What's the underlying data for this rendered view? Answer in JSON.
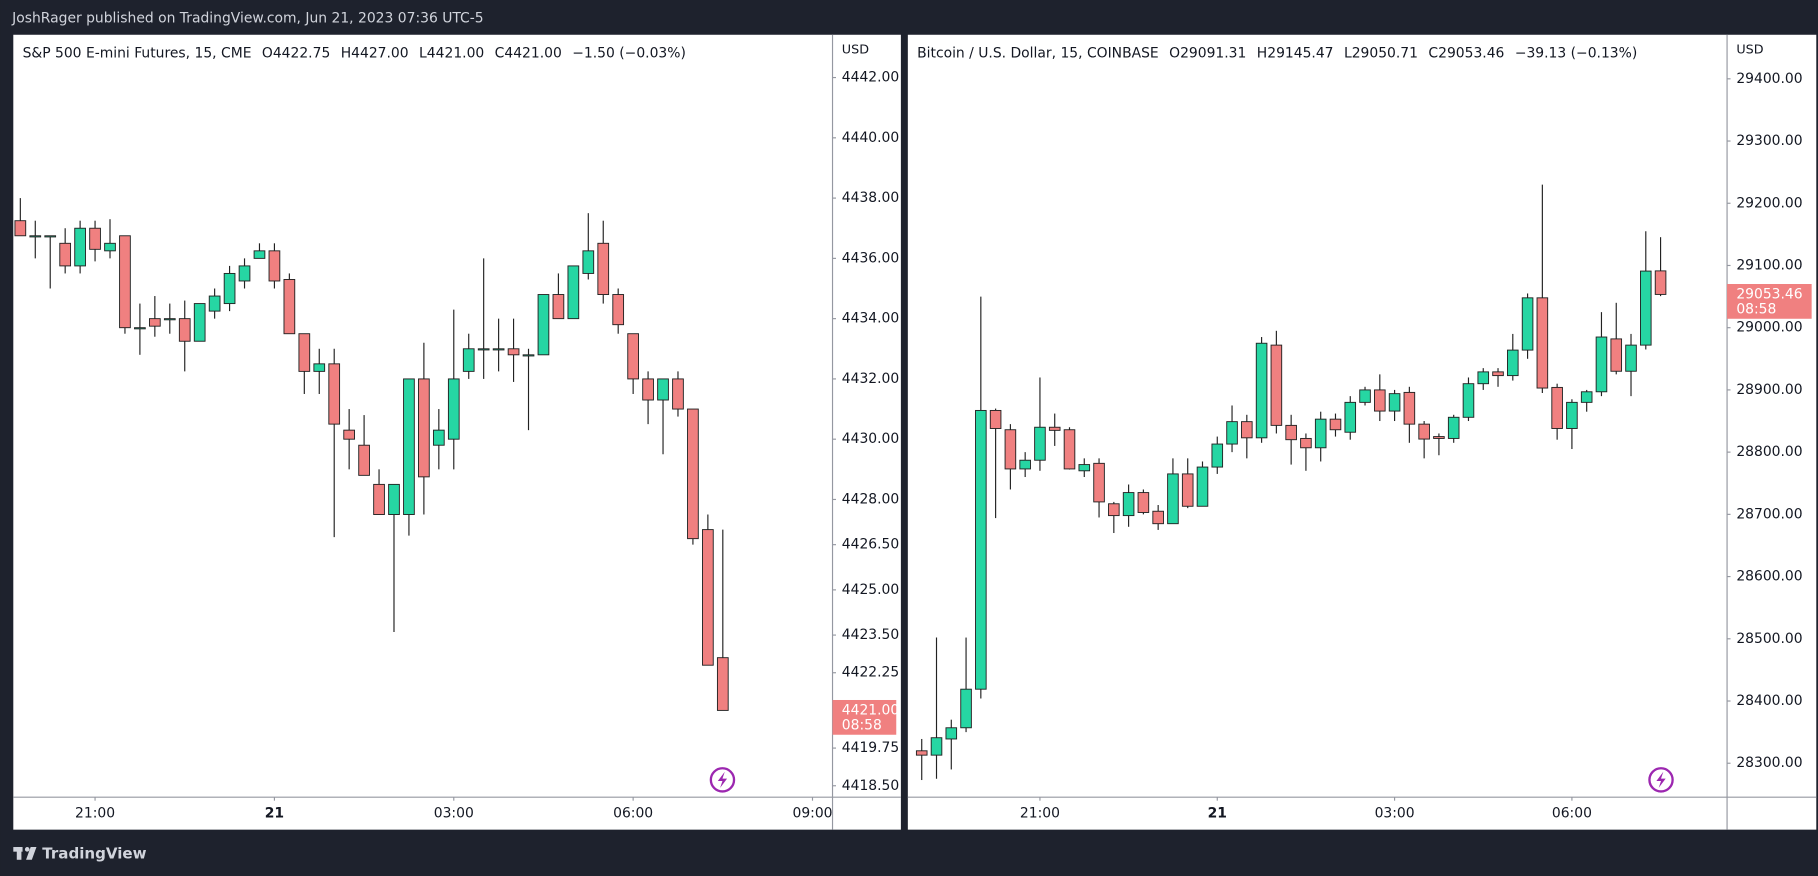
{
  "page": {
    "publisher": "JoshRager published on TradingView.com, Jun 21, 2023 07:36 UTC-5",
    "brand": "TradingView"
  },
  "chart_data": [
    {
      "type": "candlestick",
      "title": "S&P 500 E-mini Futures, 15, CME",
      "ohlc_legend": [
        {
          "label": "O",
          "value": "4422.75"
        },
        {
          "label": "H",
          "value": "4427.00"
        },
        {
          "label": "L",
          "value": "4421.00"
        },
        {
          "label": "C",
          "value": "4421.00"
        }
      ],
      "change": "−1.50 (−0.03%)",
      "currency": "USD",
      "last_price_label": "4421.00",
      "countdown": "08:58",
      "up_color": "#26d6a3",
      "down_color": "#f08080",
      "open": [
        4437.25,
        4436.75,
        4436.75,
        4436.5,
        4435.75,
        4437,
        4436.25,
        4436.75,
        4433.7,
        4434,
        4434,
        4434,
        4433.25,
        4434.25,
        4434.5,
        4435.25,
        4436,
        4436.25,
        4435.3,
        4433.5,
        4432.25,
        4432.5,
        4430.3,
        4429.8,
        4428.5,
        4427.5,
        4427.5,
        4432,
        4429.8,
        4430,
        4432.25,
        4433,
        4433,
        4433,
        4432.8,
        4432.8,
        4434.8,
        4434,
        4435.5,
        4436.5,
        4434.8,
        4433.5,
        4432,
        4431.3,
        4432,
        4431,
        4427,
        4422.75
      ],
      "high": [
        4438,
        4437.25,
        4436.75,
        4437,
        4437.25,
        4437.25,
        4437.3,
        4436.75,
        4434.5,
        4434.75,
        4434.5,
        4434.6,
        4434.5,
        4435,
        4435.75,
        4436,
        4436.5,
        4436.5,
        4435.5,
        4433.5,
        4433,
        4433,
        4431,
        4430.8,
        4429,
        4428.5,
        4432,
        4433.2,
        4431,
        4434.3,
        4433.5,
        4436,
        4434,
        4434,
        4433,
        4434.8,
        4435.5,
        4435.75,
        4437.5,
        4437.25,
        4435,
        4433.5,
        4432.25,
        4432,
        4432.25,
        4431,
        4427.5,
        4427
      ],
      "low": [
        4436.75,
        4436,
        4435,
        4435.5,
        4435.5,
        4435.9,
        4436,
        4433.5,
        4432.8,
        4433.4,
        4433.5,
        4432.25,
        4433.25,
        4434,
        4434.25,
        4435,
        4436,
        4435,
        4433.5,
        4431.5,
        4431.5,
        4426.75,
        4429,
        4428.8,
        4427.5,
        4423.6,
        4426.8,
        4427.5,
        4429,
        4429,
        4432,
        4432,
        4432.25,
        4431.9,
        4430.3,
        4432.8,
        4434,
        4434,
        4435.3,
        4434.5,
        4433.5,
        4431.5,
        4430.5,
        4429.5,
        4430.75,
        4426.5,
        4422.5,
        4421
      ],
      "close": [
        4436.75,
        4436.75,
        4436.75,
        4435.75,
        4437,
        4436.3,
        4436.5,
        4433.7,
        4433.7,
        4433.75,
        4434,
        4433.25,
        4434.5,
        4434.75,
        4435.5,
        4435.75,
        4436.25,
        4435.25,
        4433.5,
        4432.25,
        4432.5,
        4430.5,
        4430,
        4428.8,
        4427.5,
        4428.5,
        4432,
        4428.75,
        4430.3,
        4432,
        4433,
        4433,
        4433,
        4432.8,
        4432.8,
        4434.8,
        4434,
        4435.75,
        4436.25,
        4434.8,
        4433.8,
        4432,
        4431.3,
        4432,
        4431,
        4426.7,
        4422.5,
        4421
      ],
      "xlim": [
        -0.47,
        54.34
      ],
      "xticks": [
        {
          "value": 5,
          "label": "21:00"
        },
        {
          "value": 17,
          "label": "21",
          "bold": true
        },
        {
          "value": 29,
          "label": "03:00"
        },
        {
          "value": 41,
          "label": "06:00"
        },
        {
          "value": 53,
          "label": "09:00"
        }
      ],
      "ylim": [
        4418.12,
        4443.42
      ],
      "yticks": [
        {
          "value": 4442,
          "label": "4442.00"
        },
        {
          "value": 4440,
          "label": "4440.00"
        },
        {
          "value": 4438,
          "label": "4438.00"
        },
        {
          "value": 4436,
          "label": "4436.00"
        },
        {
          "value": 4434,
          "label": "4434.00"
        },
        {
          "value": 4432,
          "label": "4432.00"
        },
        {
          "value": 4430,
          "label": "4430.00"
        },
        {
          "value": 4428,
          "label": "4428.00"
        },
        {
          "value": 4426.5,
          "label": "4426.50"
        },
        {
          "value": 4425,
          "label": "4425.00"
        },
        {
          "value": 4423.5,
          "label": "4423.50"
        },
        {
          "value": 4422.25,
          "label": "4422.25"
        },
        {
          "value": 4419.75,
          "label": "4419.75"
        },
        {
          "value": 4418.5,
          "label": "4418.50"
        }
      ]
    },
    {
      "type": "candlestick",
      "title": "Bitcoin / U.S. Dollar, 15, COINBASE",
      "ohlc_legend": [
        {
          "label": "O",
          "value": "29091.31"
        },
        {
          "label": "H",
          "value": "29145.47"
        },
        {
          "label": "L",
          "value": "29050.71"
        },
        {
          "label": "C",
          "value": "29053.46"
        }
      ],
      "change": "−39.13 (−0.13%)",
      "currency": "USD",
      "last_price_label": "29053.46",
      "countdown": "08:58",
      "up_color": "#26d6a3",
      "down_color": "#f08080",
      "open": [
        28320,
        28313,
        28339,
        28357,
        28419,
        28867,
        28836,
        28773,
        28787,
        28840,
        28836,
        28770,
        28782,
        28717,
        28698,
        28735,
        28705,
        28685,
        28765,
        28713,
        28776,
        28813,
        28849,
        28823,
        28972,
        28843,
        28822,
        28807,
        28853,
        28832,
        28880,
        28900,
        28866,
        28896,
        28845,
        28825,
        28822,
        28856,
        28910,
        28929,
        28923,
        28964,
        29048,
        28904,
        28838,
        28880,
        28897,
        28982,
        28930,
        28972,
        29091.31
      ],
      "high": [
        28339,
        28502,
        28370,
        28502,
        29050,
        28870,
        28845,
        28800,
        28920,
        28862,
        28840,
        28790,
        28790,
        28720,
        28748,
        28740,
        28715,
        28790,
        28790,
        28785,
        28825,
        28875,
        28860,
        28985,
        28995,
        28860,
        28830,
        28865,
        28862,
        28890,
        28905,
        28925,
        28900,
        28905,
        28850,
        28830,
        28860,
        28920,
        28935,
        28935,
        28990,
        29055,
        29230,
        28910,
        28885,
        28900,
        29025,
        29040,
        28990,
        29155,
        29145.47
      ],
      "low": [
        28273,
        28275,
        28290,
        28350,
        28404,
        28694,
        28740,
        28760,
        28770,
        28810,
        28772,
        28760,
        28695,
        28670,
        28680,
        28700,
        28675,
        28685,
        28710,
        28713,
        28765,
        28800,
        28790,
        28815,
        28830,
        28780,
        28770,
        28785,
        28825,
        28820,
        28875,
        28850,
        28850,
        28815,
        28790,
        28795,
        28815,
        28850,
        28900,
        28905,
        28915,
        28950,
        28895,
        28820,
        28805,
        28865,
        28890,
        28925,
        28890,
        28965,
        29050.71
      ],
      "close": [
        28313,
        28341,
        28357,
        28419,
        28867,
        28838,
        28773,
        28787,
        28840,
        28835,
        28773,
        28780,
        28720,
        28698,
        28735,
        28703,
        28685,
        28765,
        28713,
        28776,
        28813,
        28849,
        28823,
        28975,
        28843,
        28820,
        28807,
        28853,
        28836,
        28880,
        28900,
        28866,
        28894,
        28845,
        28821,
        28822,
        28856,
        28910,
        28929,
        28923,
        28964,
        29048,
        28903,
        28838,
        28880,
        28897,
        28985,
        28930,
        28972,
        29091,
        29053.46
      ],
      "xlim": [
        -0.94,
        54.5
      ],
      "xticks": [
        {
          "value": 8,
          "label": "21:00"
        },
        {
          "value": 20,
          "label": "21",
          "bold": true
        },
        {
          "value": 32,
          "label": "03:00"
        },
        {
          "value": 44,
          "label": "06:00"
        }
      ],
      "ylim": [
        28245.4,
        29470.8
      ],
      "yticks": [
        {
          "value": 29400,
          "label": "29400.00"
        },
        {
          "value": 29300,
          "label": "29300.00"
        },
        {
          "value": 29200,
          "label": "29200.00"
        },
        {
          "value": 29100,
          "label": "29100.00"
        },
        {
          "value": 29000,
          "label": "29000.00"
        },
        {
          "value": 28900,
          "label": "28900.00"
        },
        {
          "value": 28800,
          "label": "28800.00"
        },
        {
          "value": 28700,
          "label": "28700.00"
        },
        {
          "value": 28600,
          "label": "28600.00"
        },
        {
          "value": 28500,
          "label": "28500.00"
        },
        {
          "value": 28400,
          "label": "28400.00"
        },
        {
          "value": 28300,
          "label": "28300.00"
        }
      ]
    }
  ]
}
